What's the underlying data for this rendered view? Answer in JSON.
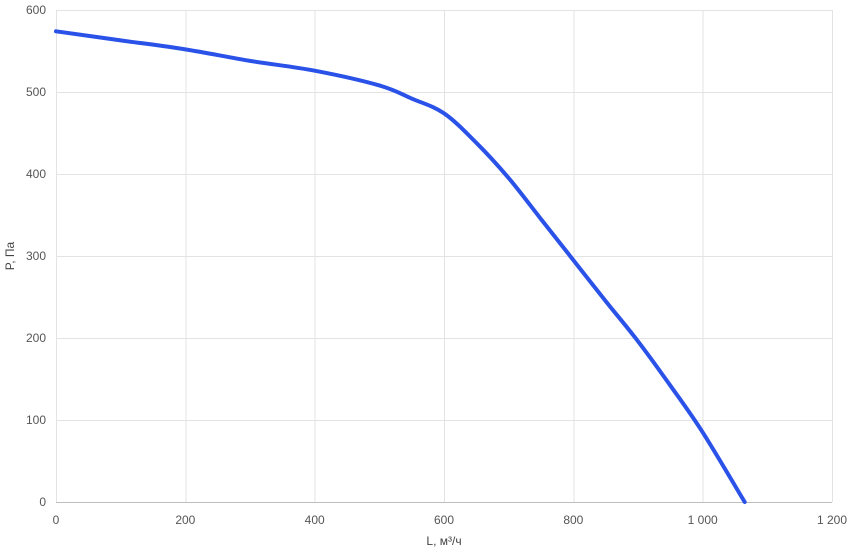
{
  "chart_data": {
    "type": "line",
    "title": "",
    "xlabel": "L, м³/ч",
    "ylabel": "P, Па",
    "xlim": [
      0,
      1200
    ],
    "ylim": [
      0,
      600
    ],
    "x_ticks": [
      {
        "value": 0,
        "label": "0"
      },
      {
        "value": 200,
        "label": "200"
      },
      {
        "value": 400,
        "label": "400"
      },
      {
        "value": 600,
        "label": "600"
      },
      {
        "value": 800,
        "label": "800"
      },
      {
        "value": 1000,
        "label": "1 000"
      },
      {
        "value": 1200,
        "label": "1 200"
      }
    ],
    "y_ticks": [
      {
        "value": 0,
        "label": "0"
      },
      {
        "value": 100,
        "label": "100"
      },
      {
        "value": 200,
        "label": "200"
      },
      {
        "value": 300,
        "label": "300"
      },
      {
        "value": 400,
        "label": "400"
      },
      {
        "value": 500,
        "label": "500"
      },
      {
        "value": 600,
        "label": "600"
      }
    ],
    "grid": true,
    "series": [
      {
        "color": "#2a52e8",
        "x": [
          0,
          100,
          200,
          300,
          400,
          500,
          550,
          600,
          650,
          700,
          750,
          800,
          850,
          900,
          950,
          1000,
          1065
        ],
        "y": [
          574,
          563,
          552,
          538,
          526,
          508,
          492,
          474,
          438,
          395,
          345,
          295,
          245,
          196,
          142,
          85,
          0
        ]
      }
    ]
  }
}
